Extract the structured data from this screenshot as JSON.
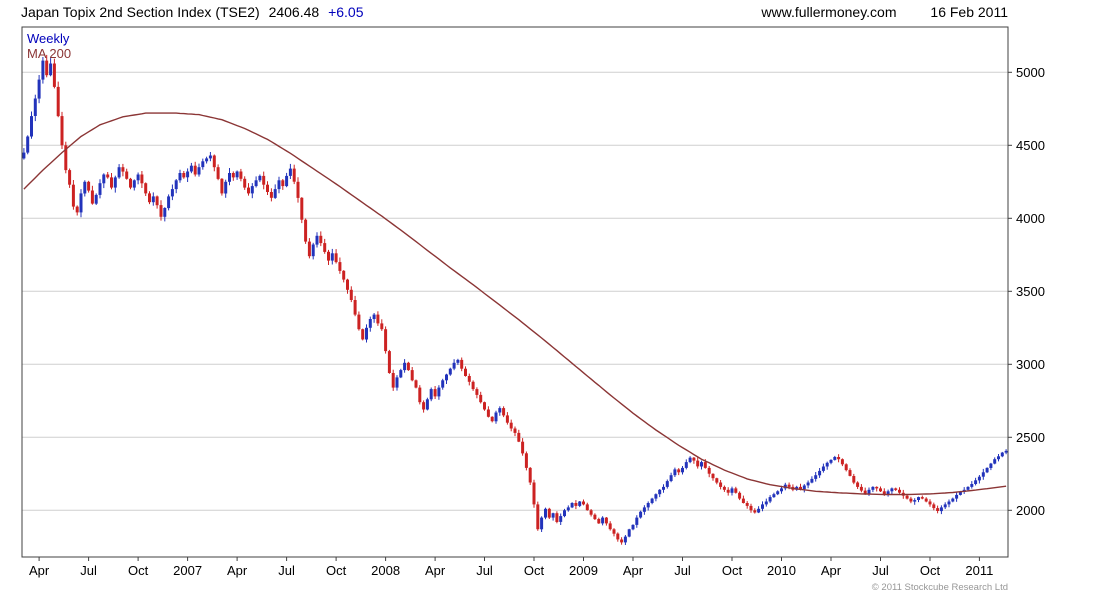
{
  "header": {
    "title": "Japan Topix 2nd Section Index (TSE2)",
    "last_price": "2406.48",
    "change": "+6.05",
    "website": "www.fullermoney.com",
    "date": "16 Feb 2011"
  },
  "chart": {
    "timeframe": "Weekly",
    "ma_label": "MA 200"
  },
  "footer": {
    "copyright": "© 2011 Stockcube Research Ltd"
  },
  "chart_data": {
    "type": "candlestick",
    "title": "Japan Topix 2nd Section Index (TSE2)",
    "last_price": 2406.48,
    "change": 6.05,
    "timeframe": "weekly",
    "x_range": "Mar 2006 - Feb 2011",
    "ylim": [
      1680,
      5310
    ],
    "y_ticks": [
      2000,
      2500,
      3000,
      3500,
      4000,
      4500,
      5000
    ],
    "x_ticks": [
      {
        "label": "Apr",
        "week": 4
      },
      {
        "label": "Jul",
        "week": 17
      },
      {
        "label": "Oct",
        "week": 30
      },
      {
        "label": "2007",
        "week": 43
      },
      {
        "label": "Apr",
        "week": 56
      },
      {
        "label": "Jul",
        "week": 69
      },
      {
        "label": "Oct",
        "week": 82
      },
      {
        "label": "2008",
        "week": 95
      },
      {
        "label": "Apr",
        "week": 108
      },
      {
        "label": "Jul",
        "week": 121
      },
      {
        "label": "Oct",
        "week": 134
      },
      {
        "label": "2009",
        "week": 147
      },
      {
        "label": "Apr",
        "week": 160
      },
      {
        "label": "Jul",
        "week": 173
      },
      {
        "label": "Oct",
        "week": 186
      },
      {
        "label": "2010",
        "week": 199
      },
      {
        "label": "Apr",
        "week": 212
      },
      {
        "label": "Jul",
        "week": 225
      },
      {
        "label": "Oct",
        "week": 238
      },
      {
        "label": "2011",
        "week": 251
      }
    ],
    "legend": [
      "Weekly",
      "MA 200"
    ],
    "colors": {
      "up": "#2233bb",
      "down": "#cc2222",
      "ma": "#8b3535",
      "grid": "#cfcfcf",
      "border": "#404040",
      "change": "#0000bb"
    },
    "weekly_closes": [
      4450,
      4560,
      4700,
      4820,
      4950,
      5080,
      4980,
      5060,
      4900,
      4700,
      4500,
      4330,
      4230,
      4080,
      4040,
      4170,
      4250,
      4190,
      4100,
      4160,
      4240,
      4300,
      4280,
      4210,
      4280,
      4350,
      4320,
      4270,
      4210,
      4260,
      4300,
      4240,
      4170,
      4110,
      4150,
      4090,
      4010,
      4070,
      4150,
      4200,
      4260,
      4310,
      4280,
      4320,
      4360,
      4300,
      4350,
      4390,
      4410,
      4430,
      4350,
      4270,
      4170,
      4250,
      4310,
      4280,
      4320,
      4270,
      4210,
      4170,
      4220,
      4260,
      4290,
      4230,
      4180,
      4140,
      4200,
      4260,
      4220,
      4290,
      4340,
      4250,
      4140,
      3990,
      3840,
      3740,
      3820,
      3880,
      3830,
      3770,
      3710,
      3760,
      3700,
      3640,
      3580,
      3510,
      3440,
      3340,
      3240,
      3170,
      3250,
      3310,
      3340,
      3280,
      3240,
      3090,
      2940,
      2840,
      2910,
      2960,
      3010,
      2960,
      2890,
      2840,
      2740,
      2690,
      2760,
      2830,
      2780,
      2840,
      2890,
      2930,
      2970,
      3010,
      3030,
      2970,
      2920,
      2880,
      2830,
      2790,
      2740,
      2690,
      2640,
      2610,
      2670,
      2700,
      2650,
      2600,
      2560,
      2530,
      2470,
      2390,
      2290,
      2190,
      2040,
      1870,
      1950,
      2010,
      1950,
      1980,
      1920,
      1960,
      2000,
      2020,
      2050,
      2030,
      2060,
      2040,
      2000,
      1970,
      1940,
      1910,
      1950,
      1910,
      1870,
      1840,
      1800,
      1780,
      1820,
      1870,
      1900,
      1950,
      1990,
      2020,
      2050,
      2080,
      2110,
      2140,
      2160,
      2200,
      2240,
      2280,
      2260,
      2290,
      2330,
      2360,
      2340,
      2300,
      2330,
      2290,
      2250,
      2220,
      2190,
      2160,
      2140,
      2120,
      2150,
      2120,
      2080,
      2050,
      2030,
      2000,
      1985,
      2010,
      2040,
      2060,
      2090,
      2110,
      2130,
      2150,
      2175,
      2160,
      2140,
      2160,
      2145,
      2170,
      2190,
      2215,
      2240,
      2270,
      2300,
      2325,
      2345,
      2365,
      2350,
      2315,
      2275,
      2235,
      2190,
      2160,
      2135,
      2115,
      2140,
      2160,
      2150,
      2130,
      2110,
      2130,
      2150,
      2140,
      2120,
      2100,
      2080,
      2060,
      2070,
      2090,
      2080,
      2060,
      2040,
      2015,
      1995,
      2020,
      2040,
      2060,
      2080,
      2105,
      2125,
      2140,
      2160,
      2180,
      2205,
      2230,
      2260,
      2290,
      2320,
      2350,
      2370,
      2395,
      2406.48
    ],
    "ma_anchors": [
      [
        0,
        4200
      ],
      [
        5,
        4330
      ],
      [
        10,
        4450
      ],
      [
        15,
        4560
      ],
      [
        20,
        4640
      ],
      [
        26,
        4695
      ],
      [
        32,
        4720
      ],
      [
        40,
        4720
      ],
      [
        46,
        4710
      ],
      [
        52,
        4675
      ],
      [
        58,
        4615
      ],
      [
        64,
        4540
      ],
      [
        70,
        4445
      ],
      [
        76,
        4340
      ],
      [
        82,
        4235
      ],
      [
        88,
        4125
      ],
      [
        94,
        4015
      ],
      [
        100,
        3900
      ],
      [
        106,
        3780
      ],
      [
        112,
        3660
      ],
      [
        118,
        3545
      ],
      [
        124,
        3425
      ],
      [
        130,
        3305
      ],
      [
        136,
        3180
      ],
      [
        142,
        3050
      ],
      [
        148,
        2920
      ],
      [
        154,
        2790
      ],
      [
        160,
        2665
      ],
      [
        166,
        2550
      ],
      [
        172,
        2445
      ],
      [
        178,
        2350
      ],
      [
        184,
        2275
      ],
      [
        190,
        2215
      ],
      [
        196,
        2175
      ],
      [
        202,
        2150
      ],
      [
        208,
        2130
      ],
      [
        214,
        2120
      ],
      [
        220,
        2112
      ],
      [
        226,
        2108
      ],
      [
        232,
        2108
      ],
      [
        238,
        2112
      ],
      [
        244,
        2122
      ],
      [
        250,
        2138
      ],
      [
        258,
        2165
      ]
    ]
  }
}
